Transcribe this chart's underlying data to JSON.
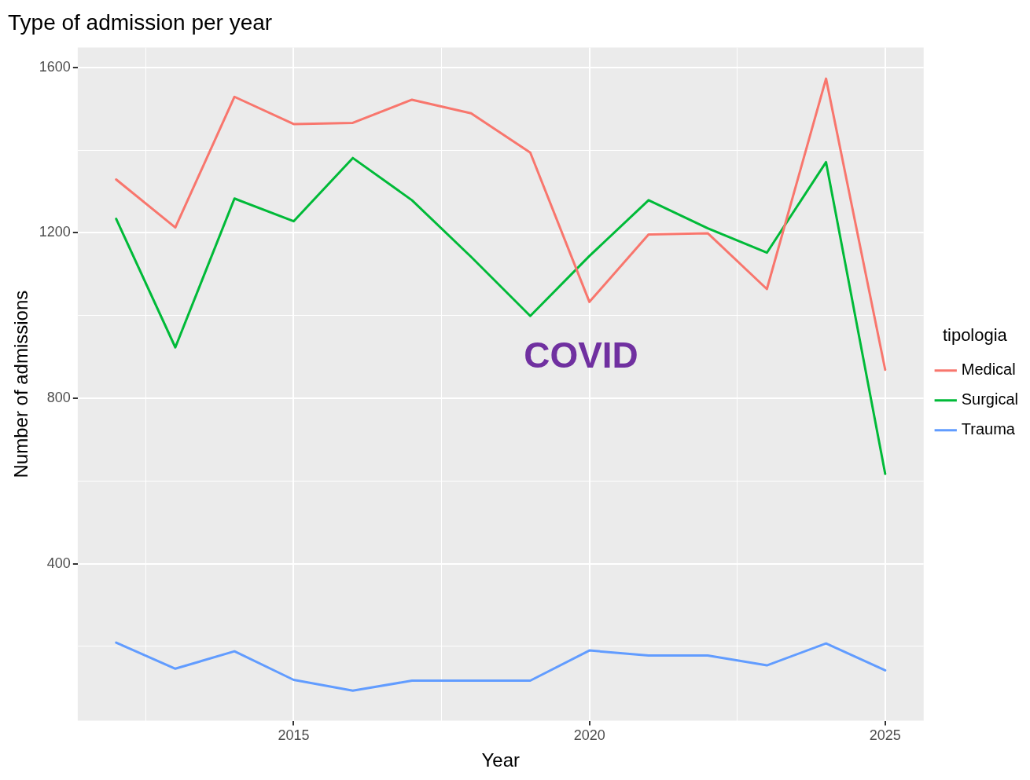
{
  "chart_data": {
    "type": "line",
    "title": "Type of admission per year",
    "xlabel": "Year",
    "ylabel": "Number of admissions",
    "legend_title": "tipologia",
    "legend": "right",
    "grid": true,
    "marker": "none",
    "line_style": "solid",
    "x": [
      2012,
      2013,
      2014,
      2015,
      2016,
      2017,
      2018,
      2019,
      2020,
      2021,
      2022,
      2023,
      2024,
      2025
    ],
    "xlim": [
      2011.35,
      2025.65
    ],
    "xticks": [
      {
        "value": 2012.5,
        "label": null
      },
      2015,
      {
        "value": 2017.5,
        "label": null
      },
      2020,
      {
        "value": 2022.5,
        "label": null
      },
      2025
    ],
    "ylim": [
      20,
      1648
    ],
    "yticks": [
      {
        "value": 200,
        "label": null
      },
      400,
      {
        "value": 600,
        "label": null
      },
      800,
      {
        "value": 1000,
        "label": null
      },
      1200,
      {
        "value": 1400,
        "label": null
      },
      1600
    ],
    "series": [
      {
        "name": "Medical",
        "color": "#f8766d",
        "values": [
          1329,
          1213,
          1529,
          1463,
          1466,
          1522,
          1489,
          1394,
          1033,
          1196,
          1199,
          1064,
          1573,
          869
        ]
      },
      {
        "name": "Surgical",
        "color": "#00ba38",
        "values": [
          1234,
          923,
          1283,
          1228,
          1381,
          1279,
          1142,
          999,
          1144,
          1279,
          1211,
          1152,
          1371,
          617
        ]
      },
      {
        "name": "Trauma",
        "color": "#619cff",
        "values": [
          209,
          146,
          188,
          119,
          93,
          117,
          117,
          117,
          190,
          178,
          178,
          154,
          207,
          142
        ]
      }
    ],
    "annotations": [
      "COVID"
    ]
  }
}
